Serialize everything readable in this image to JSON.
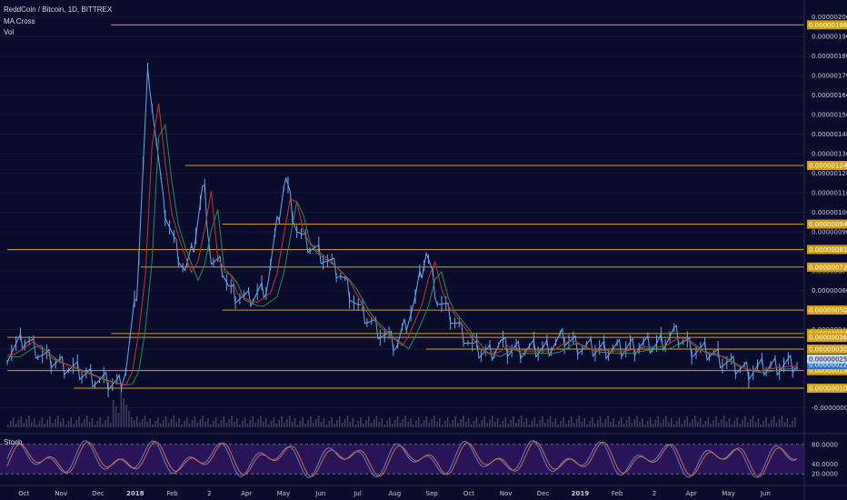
{
  "header": {
    "symbol_line": "ReddCoin / Bitcoin, 1D, BITTREX",
    "indicator_1": "MA Cross",
    "indicator_2": "Vol"
  },
  "stoch_panel": {
    "label": "Stoch",
    "tick_labels": [
      "80.0000",
      "40.0000",
      "20.0000"
    ],
    "upper_band": 80,
    "lower_band": 20
  },
  "colors": {
    "background": "#0b0b2b",
    "level_line": "#d4a017",
    "level_tag": "#d4a017",
    "current_price_tag": "#2d6fd8",
    "candle": "#6aa8e8",
    "ma_green": "#2e8b57",
    "ma_red": "#c0392b",
    "volume": "#3a4060",
    "stoch_fill": "#2a1458",
    "stoch_k": "#5b7fc9",
    "stoch_d": "#d26a3a"
  },
  "chart_data": {
    "type": "line",
    "title": "ReddCoin / Bitcoin, 1D, BITTREX",
    "y_tick_labels": [
      "0.00000200",
      "0.00000190",
      "0.00000180",
      "0.00000170",
      "0.00000160",
      "0.00000150",
      "0.00000140",
      "0.00000130",
      "0.00000120",
      "0.00000110",
      "0.00000100",
      "0.00000090",
      "0.00000080",
      "0.00000070",
      "0.00000060",
      "0.00000050",
      "0.00000040",
      "0.00000030",
      "0.00000020",
      "0.00000010",
      "-0.00000000"
    ],
    "y_ticks": [
      200,
      190,
      180,
      170,
      160,
      150,
      140,
      130,
      120,
      110,
      100,
      90,
      80,
      70,
      60,
      50,
      40,
      30,
      20,
      10,
      0
    ],
    "ylim": [
      -10,
      205
    ],
    "x_tick_labels": [
      "Oct",
      "Nov",
      "Dec",
      "2018",
      "Feb",
      "2",
      "Apr",
      "May",
      "Jun",
      "Jul",
      "Aug",
      "Sep",
      "Oct",
      "Nov",
      "Dec",
      "2019",
      "Feb",
      "2",
      "Apr",
      "May",
      "Jun"
    ],
    "horizontal_levels": [
      {
        "label": "0.00000196",
        "value": 196,
        "start_month": 2.8
      },
      {
        "label": "0.00000124",
        "value": 124,
        "start_month": 4.8
      },
      {
        "label": "0.00000094",
        "value": 94,
        "start_month": 5.8
      },
      {
        "label": "0.00000081",
        "value": 81,
        "start_month": 0
      },
      {
        "label": "0.00000072",
        "value": 72,
        "start_month": 3.6
      },
      {
        "label": "0.00000050",
        "value": 50,
        "start_month": 5.8
      },
      {
        "label": "0.00000038",
        "value": 38,
        "start_month": 2.8
      },
      {
        "label": "0.00000036",
        "value": 36,
        "start_month": 0
      },
      {
        "label": "0.00000030",
        "value": 30,
        "start_month": 11.3
      },
      {
        "label": "0.00000019",
        "value": 19,
        "start_month": 0
      },
      {
        "label": "0.00000010",
        "value": 10,
        "start_month": 1.8
      }
    ],
    "current_price": {
      "label": "0.00000022",
      "value": 22
    },
    "price_axis_extra_tag": {
      "label": "0.00000025",
      "value": 25
    },
    "month_index": [
      0,
      0.5,
      1,
      1.5,
      2,
      2.5,
      3,
      3.2,
      3.5,
      3.8,
      4,
      4.2,
      4.5,
      4.8,
      5,
      5.3,
      5.5,
      5.8,
      6,
      6.5,
      7,
      7.5,
      7.8,
      8,
      8.5,
      9,
      9.5,
      10,
      10.5,
      11,
      11.3,
      11.6,
      12,
      12.3,
      12.6,
      13,
      13.3,
      13.5,
      14,
      14.5,
      15,
      15.5,
      16,
      16.5,
      17,
      17.5,
      18,
      18.5,
      19,
      19.5,
      20,
      20.5,
      21
    ],
    "price_values": [
      28,
      35,
      26,
      22,
      18,
      14,
      12,
      20,
      60,
      175,
      140,
      105,
      85,
      70,
      80,
      115,
      75,
      72,
      60,
      55,
      62,
      118,
      92,
      85,
      78,
      68,
      50,
      40,
      32,
      55,
      80,
      56,
      46,
      38,
      30,
      28,
      33,
      30,
      30,
      30,
      36,
      31,
      30,
      30,
      32,
      32,
      38,
      30,
      28,
      22,
      19,
      21,
      22
    ]
  }
}
